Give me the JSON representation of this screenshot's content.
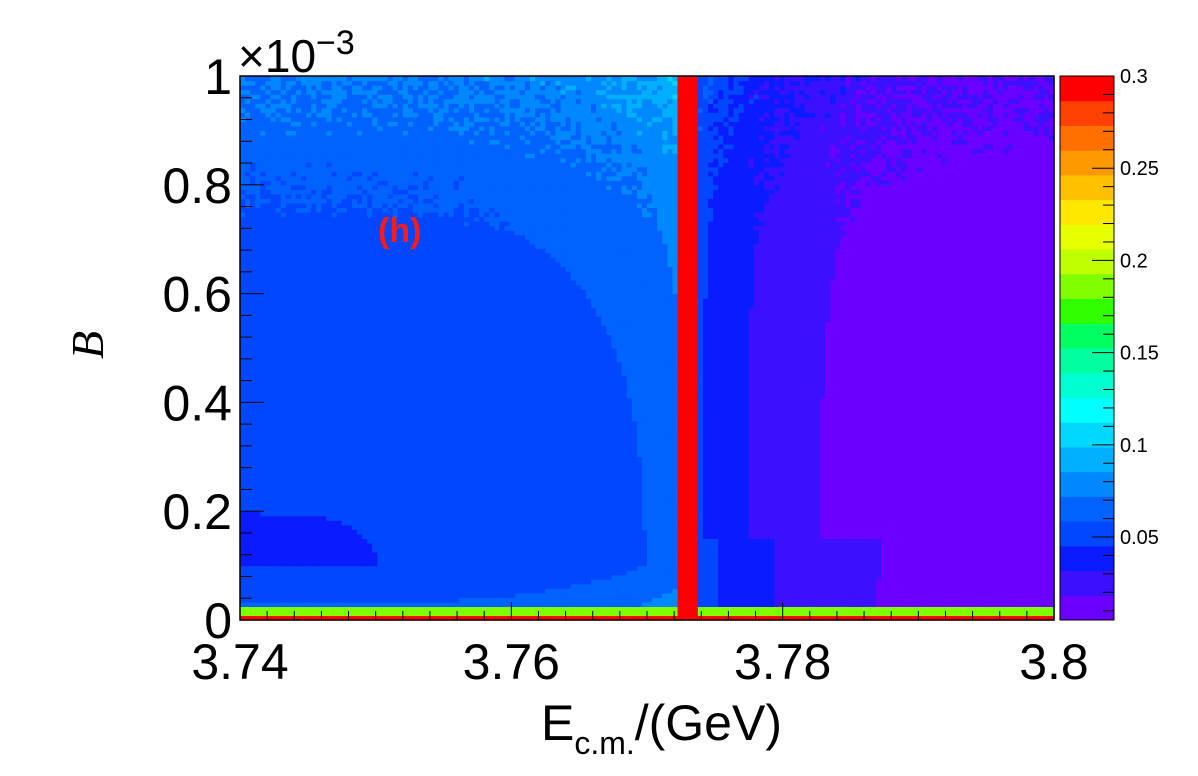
{
  "chart_data": {
    "type": "heatmap",
    "title": "",
    "xlabel": "E",
    "xlabel_sub": "c.m.",
    "xlabel_unit": "/(GeV)",
    "ylabel": "B",
    "y_multiplier": "×10",
    "y_multiplier_exp": "−3",
    "annotation": "(h)",
    "annotation_color": "#ff1a1a",
    "xlim": [
      3.74,
      3.8
    ],
    "ylim": [
      0,
      0.001
    ],
    "x_ticks": [
      {
        "value": 3.74,
        "label": "3.74"
      },
      {
        "value": 3.76,
        "label": "3.76"
      },
      {
        "value": 3.78,
        "label": "3.78"
      },
      {
        "value": 3.8,
        "label": "3.8"
      }
    ],
    "y_ticks": [
      {
        "value": 0,
        "label": "0"
      },
      {
        "value": 0.0002,
        "label": "0.2"
      },
      {
        "value": 0.0004,
        "label": "0.4"
      },
      {
        "value": 0.0006,
        "label": "0.6"
      },
      {
        "value": 0.0008,
        "label": "0.8"
      },
      {
        "value": 0.001,
        "label": "1"
      }
    ],
    "z_range": [
      0.005,
      0.3
    ],
    "z_ticks": [
      {
        "value": 0.05,
        "label": "0.05"
      },
      {
        "value": 0.1,
        "label": "0.1"
      },
      {
        "value": 0.15,
        "label": "0.15"
      },
      {
        "value": 0.2,
        "label": "0.2"
      },
      {
        "value": 0.25,
        "label": "0.25"
      },
      {
        "value": 0.3,
        "label": "0.3"
      }
    ],
    "colorscale": [
      "#6a00ff",
      "#3a10ff",
      "#0a1cff",
      "#0047ff",
      "#0062ff",
      "#0088ff",
      "#00b0ff",
      "#00d8ff",
      "#00ffff",
      "#00ffd0",
      "#00ffa0",
      "#00ff60",
      "#30ff00",
      "#80ff00",
      "#c0ff00",
      "#e8ff00",
      "#ffe800",
      "#ffc000",
      "#ff9900",
      "#ff7000",
      "#ff4000",
      "#ff0000"
    ],
    "peak_energy": 3.773,
    "grid": false,
    "colorbar": "right"
  }
}
